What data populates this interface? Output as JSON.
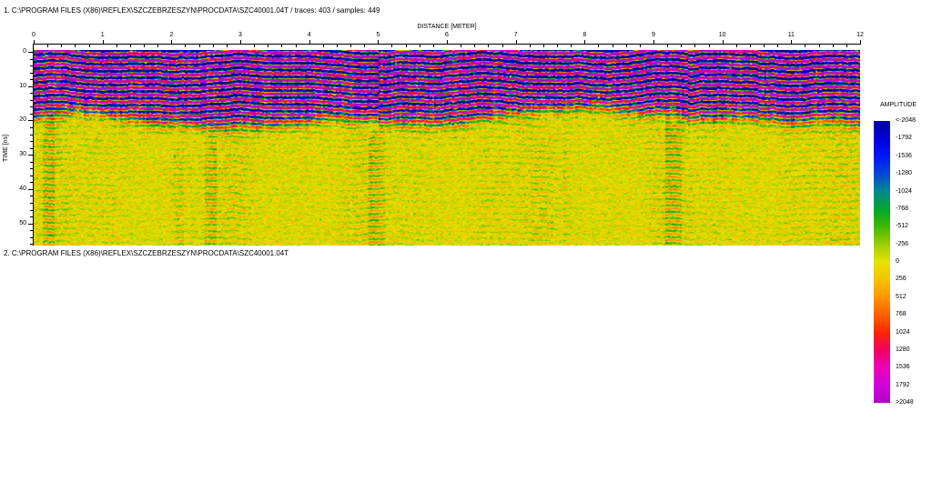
{
  "sections": {
    "primary": "1. C:\\PROGRAM FILES (X86)\\REFLEX\\SZCZEBRZESZYN\\PROCDATA\\SZC40001.04T / traces: 403 / samples: 449",
    "secondary": "2. C:\\PROGRAM FILES (X86)\\REFLEX\\SZCZEBRZESZYN\\PROCDATA\\SZC40001.04T"
  },
  "chart_data": {
    "type": "heatmap",
    "title": "",
    "xlabel": "DISTANCE [METER]",
    "ylabel": "TIME [ns]",
    "xlim": [
      0,
      12
    ],
    "ylim_ns": [
      0,
      57
    ],
    "x_major_ticks": [
      0,
      1,
      2,
      3,
      4,
      5,
      6,
      7,
      8,
      9,
      10,
      11,
      12
    ],
    "x_minor_step_m": 0.2,
    "y_major_ticks": [
      0,
      10,
      20,
      30,
      40,
      50
    ],
    "y_minor_step_ns": 2,
    "grid": false,
    "traces": 403,
    "samples": 449,
    "colorbar": {
      "title": "AMPLITUDE",
      "position": "right",
      "tick_labels": [
        "<-2048",
        "-1792",
        "-1536",
        "-1280",
        "-1024",
        "-768",
        "-512",
        "-256",
        "0",
        "256",
        "512",
        "768",
        "1024",
        "1280",
        "1536",
        "1792",
        ">2048"
      ],
      "stops": [
        {
          "value": -2048,
          "color": "#0000A0"
        },
        {
          "value": -1792,
          "color": "#0000D8"
        },
        {
          "value": -1536,
          "color": "#0018F8"
        },
        {
          "value": -1280,
          "color": "#0048D8"
        },
        {
          "value": -1024,
          "color": "#008890"
        },
        {
          "value": -768,
          "color": "#00A430"
        },
        {
          "value": -512,
          "color": "#40B800"
        },
        {
          "value": -256,
          "color": "#9CCE00"
        },
        {
          "value": 0,
          "color": "#E6E200"
        },
        {
          "value": 256,
          "color": "#F6C200"
        },
        {
          "value": 512,
          "color": "#FF9600"
        },
        {
          "value": 768,
          "color": "#FF5E00"
        },
        {
          "value": 1024,
          "color": "#FB2600"
        },
        {
          "value": 1280,
          "color": "#F20064"
        },
        {
          "value": 1536,
          "color": "#EA00B6"
        },
        {
          "value": 1792,
          "color": "#D200DC"
        },
        {
          "value": 2048,
          "color": "#B400C8"
        }
      ]
    },
    "texture": {
      "band_period_ns": 2.0,
      "banded_zone_mean_depth_ns": 21,
      "banded_zone_depth_variation_ns": 4,
      "zones": [
        {
          "name": "layered-reflections",
          "time_ns": [
            0,
            21
          ],
          "description": "strong continuous wavy horizontal reflections; alternating saturated blue (negative peaks) and violet (positive peaks) bands about 2 ns apart with thin red/green/yellow fringes"
        },
        {
          "name": "weak-scatter",
          "time_ns": [
            21,
            57
          ],
          "description": "near-zero amplitudes: yellow background with short green/orange speckle dashes and occasional stronger vertical noise streaks"
        }
      ]
    }
  },
  "colors": {
    "background": "#FFFFFF",
    "text": "#000000",
    "axis": "#000000"
  }
}
